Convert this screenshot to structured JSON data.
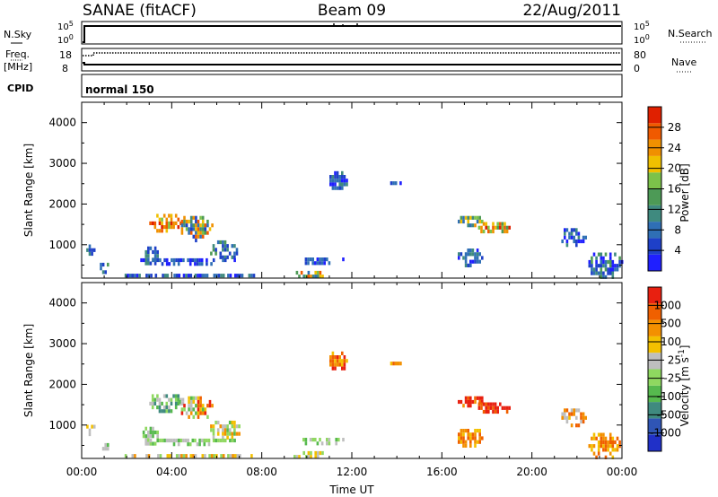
{
  "header": {
    "left": "SANAE (fitACF)",
    "center": "Beam 09",
    "right": "22/Aug/2011"
  },
  "status_panels": {
    "nsky_label": "N.Sky",
    "freq_label_1": "Freq.",
    "freq_label_2": "[MHz]",
    "cpid_label": "CPID",
    "nsearch_label": "N.Search",
    "nave_label": "Nave",
    "nsky_ticks": [
      "10^5",
      "10^0"
    ],
    "nsearch_ticks": [
      "10^5",
      "10^0"
    ],
    "freq_ticks": [
      "18",
      "8"
    ],
    "nave_ticks": [
      "80",
      "0"
    ],
    "cpid_value": "normal 150"
  },
  "chart_data": [
    {
      "type": "heatmap",
      "name": "power",
      "xlabel": "",
      "ylabel": "Slant Range [km]",
      "xlim": [
        0,
        24
      ],
      "ylim": [
        180,
        4500
      ],
      "y_ticks": [
        "1000",
        "2000",
        "3000",
        "4000"
      ],
      "colorbar": {
        "label": "Power [dB]",
        "ticks": [
          "4",
          "8",
          "12",
          "16",
          "20",
          "24",
          "28"
        ],
        "colors": [
          "#1f1fff",
          "#1e40c8",
          "#2f6fb5",
          "#3f8a7f",
          "#4d9a56",
          "#7cc24a",
          "#f0c000",
          "#f09000",
          "#f05a00",
          "#e02000"
        ]
      },
      "regions": [
        {
          "t0": 2.9,
          "t1": 4.5,
          "r0": 1350,
          "r1": 1850,
          "c": [
            5,
            9
          ]
        },
        {
          "t0": 4.2,
          "t1": 5.8,
          "r0": 1150,
          "r1": 1800,
          "c": [
            1,
            8
          ]
        },
        {
          "t0": 5.6,
          "t1": 7.0,
          "r0": 650,
          "r1": 1200,
          "c": [
            1,
            4
          ]
        },
        {
          "t0": 2.6,
          "t1": 3.4,
          "r0": 500,
          "r1": 1050,
          "c": [
            1,
            3
          ]
        },
        {
          "t0": 0.1,
          "t1": 0.6,
          "r0": 800,
          "r1": 1100,
          "c": [
            1,
            3
          ]
        },
        {
          "t0": 0.7,
          "t1": 1.2,
          "r0": 350,
          "r1": 650,
          "c": [
            1,
            4
          ]
        },
        {
          "t0": 1.8,
          "t1": 7.7,
          "r0": 220,
          "r1": 380,
          "c": [
            0,
            3
          ]
        },
        {
          "t0": 2.5,
          "t1": 6.8,
          "r0": 560,
          "r1": 760,
          "c": [
            0,
            2
          ]
        },
        {
          "t0": 9.2,
          "t1": 10.8,
          "r0": 180,
          "r1": 450,
          "c": [
            2,
            8
          ]
        },
        {
          "t0": 9.6,
          "t1": 11.6,
          "r0": 560,
          "r1": 780,
          "c": [
            0,
            2
          ]
        },
        {
          "t0": 10.9,
          "t1": 11.8,
          "r0": 2350,
          "r1": 2900,
          "c": [
            0,
            3
          ]
        },
        {
          "t0": 13.6,
          "t1": 14.2,
          "r0": 2500,
          "r1": 2650,
          "c": [
            0,
            2
          ]
        },
        {
          "t0": 16.6,
          "t1": 17.8,
          "r0": 1500,
          "r1": 1800,
          "c": [
            2,
            7
          ]
        },
        {
          "t0": 17.5,
          "t1": 19.0,
          "r0": 1300,
          "r1": 1650,
          "c": [
            4,
            9
          ]
        },
        {
          "t0": 16.6,
          "t1": 17.8,
          "r0": 500,
          "r1": 1000,
          "c": [
            0,
            3
          ]
        },
        {
          "t0": 21.2,
          "t1": 22.4,
          "r0": 1000,
          "r1": 1500,
          "c": [
            0,
            3
          ]
        },
        {
          "t0": 22.4,
          "t1": 24.0,
          "r0": 200,
          "r1": 900,
          "c": [
            0,
            4
          ]
        }
      ]
    },
    {
      "type": "heatmap",
      "name": "velocity",
      "xlabel": "Time UT",
      "ylabel": "Slant Range [km]",
      "xlim": [
        0,
        24
      ],
      "ylim": [
        180,
        4500
      ],
      "x_ticks": [
        "00:00",
        "04:00",
        "08:00",
        "12:00",
        "16:00",
        "20:00",
        "00:00"
      ],
      "y_ticks": [
        "1000",
        "2000",
        "3000",
        "4000"
      ],
      "colorbar": {
        "label": "Velocity [m s^-1]",
        "ticks": [
          "1000",
          "500",
          "100",
          "25",
          "-25",
          "-100",
          "-500",
          "-1000"
        ],
        "colors": [
          "#2030c8",
          "#2f55b5",
          "#3f8a7f",
          "#56b94e",
          "#8fd860",
          "#bebebe",
          "#f3c000",
          "#f39000",
          "#f06000",
          "#e82010"
        ]
      },
      "regions": [
        {
          "t0": 2.9,
          "t1": 4.5,
          "r0": 1350,
          "r1": 1850,
          "c": [
            2,
            5
          ]
        },
        {
          "t0": 4.2,
          "t1": 5.8,
          "r0": 1150,
          "r1": 1800,
          "c": [
            3,
            9
          ]
        },
        {
          "t0": 5.6,
          "t1": 7.0,
          "r0": 650,
          "r1": 1200,
          "c": [
            3,
            7
          ]
        },
        {
          "t0": 2.6,
          "t1": 3.4,
          "r0": 500,
          "r1": 1050,
          "c": [
            3,
            5
          ]
        },
        {
          "t0": 0.1,
          "t1": 0.6,
          "r0": 800,
          "r1": 1100,
          "c": [
            5,
            8
          ]
        },
        {
          "t0": 0.7,
          "t1": 1.2,
          "r0": 350,
          "r1": 650,
          "c": [
            2,
            5
          ]
        },
        {
          "t0": 1.8,
          "t1": 7.7,
          "r0": 220,
          "r1": 380,
          "c": [
            4,
            7
          ]
        },
        {
          "t0": 2.5,
          "t1": 6.8,
          "r0": 560,
          "r1": 760,
          "c": [
            3,
            5
          ]
        },
        {
          "t0": 9.2,
          "t1": 10.8,
          "r0": 180,
          "r1": 450,
          "c": [
            4,
            6
          ]
        },
        {
          "t0": 9.6,
          "t1": 11.6,
          "r0": 560,
          "r1": 780,
          "c": [
            3,
            5
          ]
        },
        {
          "t0": 10.9,
          "t1": 11.8,
          "r0": 2350,
          "r1": 2900,
          "c": [
            6,
            9
          ]
        },
        {
          "t0": 13.6,
          "t1": 14.2,
          "r0": 2500,
          "r1": 2650,
          "c": [
            6,
            8
          ]
        },
        {
          "t0": 16.6,
          "t1": 17.8,
          "r0": 1500,
          "r1": 1800,
          "c": [
            7,
            10
          ]
        },
        {
          "t0": 17.5,
          "t1": 19.0,
          "r0": 1300,
          "r1": 1650,
          "c": [
            8,
            10
          ]
        },
        {
          "t0": 16.6,
          "t1": 17.8,
          "r0": 500,
          "r1": 1000,
          "c": [
            6,
            8
          ]
        },
        {
          "t0": 21.2,
          "t1": 22.4,
          "r0": 1000,
          "r1": 1500,
          "c": [
            5,
            8
          ]
        },
        {
          "t0": 22.4,
          "t1": 24.0,
          "r0": 200,
          "r1": 900,
          "c": [
            6,
            8
          ]
        }
      ]
    }
  ]
}
